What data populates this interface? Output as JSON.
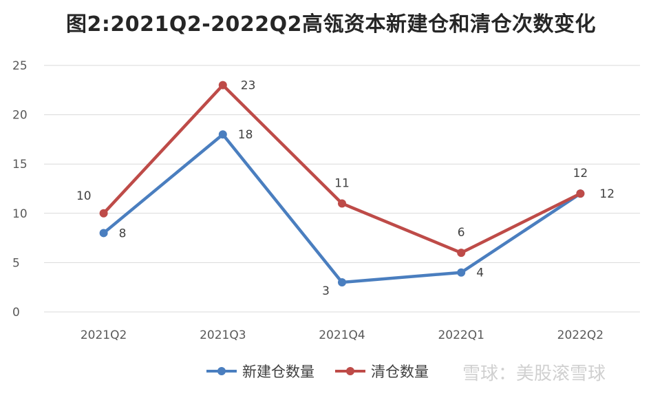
{
  "chart_data": {
    "type": "line",
    "title": "图2:2021Q2-2022Q2高瓴资本新建仓和清仓次数变化",
    "categories": [
      "2021Q2",
      "2021Q3",
      "2021Q4",
      "2022Q1",
      "2022Q2"
    ],
    "ylim": [
      0,
      25
    ],
    "yticks": [
      0,
      5,
      10,
      15,
      20,
      25
    ],
    "grid": true,
    "legend_position": "bottom",
    "series": [
      {
        "name": "新建仓数量",
        "values": [
          8,
          18,
          3,
          4,
          12
        ],
        "color": "#4a7ebf"
      },
      {
        "name": "清仓数量",
        "values": [
          10,
          23,
          11,
          6,
          12
        ],
        "color": "#be4b48"
      }
    ]
  },
  "watermark": "雪球：美股滚雪球"
}
